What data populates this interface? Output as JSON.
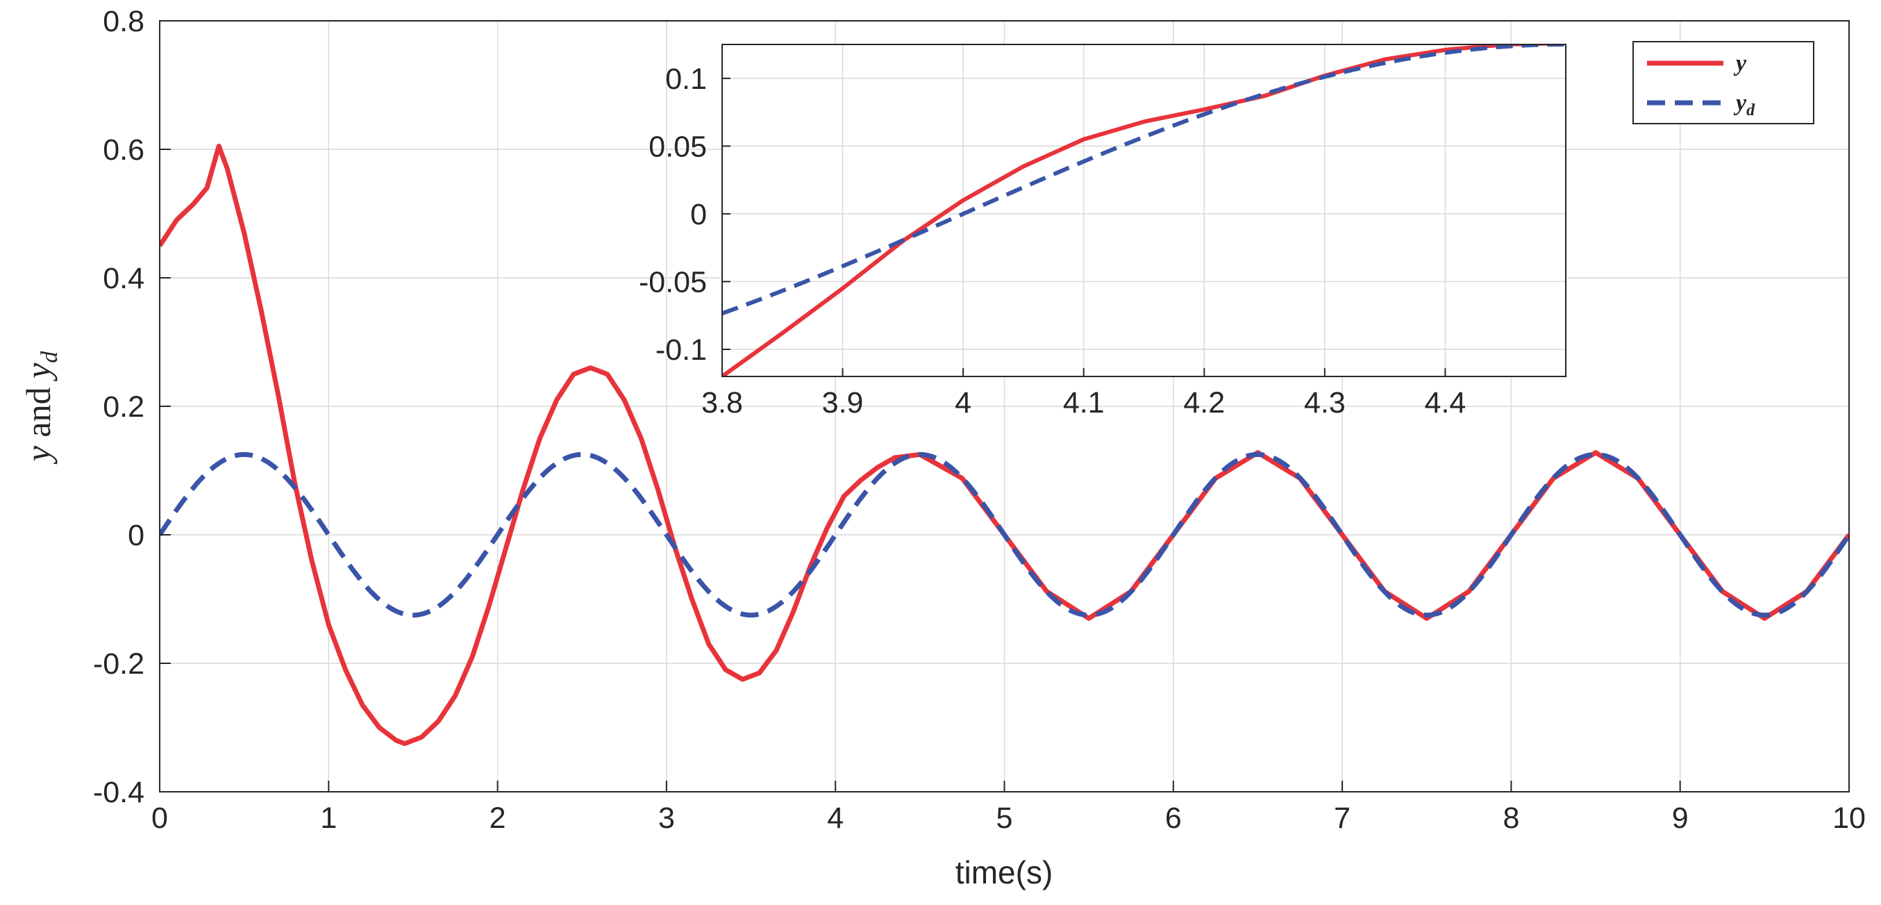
{
  "chart_data": [
    {
      "type": "line",
      "panel": "main",
      "xlabel": "time(s)",
      "ylabel": "y and y_d",
      "ylabel_parts": {
        "y": "y",
        "and": " and ",
        "yd": "y",
        "yd_sub": "d"
      },
      "xlim": [
        0,
        10
      ],
      "ylim": [
        -0.4,
        0.8
      ],
      "grid": true,
      "xticks": [
        0,
        1,
        2,
        3,
        4,
        5,
        6,
        7,
        8,
        9,
        10
      ],
      "xtick_labels": [
        "0",
        "1",
        "2",
        "3",
        "4",
        "5",
        "6",
        "7",
        "8",
        "9",
        "10"
      ],
      "yticks": [
        -0.4,
        -0.2,
        0,
        0.2,
        0.4,
        0.6,
        0.8
      ],
      "ytick_labels": [
        "-0.4",
        "-0.2",
        "0",
        "0.2",
        "0.4",
        "0.6",
        "0.8"
      ],
      "series": [
        {
          "name": "y",
          "color": "#e8333a",
          "style": "solid",
          "points": [
            [
              0,
              0.45
            ],
            [
              0.05,
              0.47
            ],
            [
              0.1,
              0.49
            ],
            [
              0.2,
              0.515
            ],
            [
              0.28,
              0.54
            ],
            [
              0.35,
              0.605
            ],
            [
              0.4,
              0.57
            ],
            [
              0.5,
              0.47
            ],
            [
              0.6,
              0.35
            ],
            [
              0.7,
              0.22
            ],
            [
              0.8,
              0.08
            ],
            [
              0.9,
              -0.04
            ],
            [
              1.0,
              -0.14
            ],
            [
              1.1,
              -0.21
            ],
            [
              1.2,
              -0.265
            ],
            [
              1.3,
              -0.3
            ],
            [
              1.4,
              -0.32
            ],
            [
              1.45,
              -0.325
            ],
            [
              1.55,
              -0.315
            ],
            [
              1.65,
              -0.29
            ],
            [
              1.75,
              -0.25
            ],
            [
              1.85,
              -0.19
            ],
            [
              1.95,
              -0.11
            ],
            [
              2.05,
              -0.02
            ],
            [
              2.15,
              0.07
            ],
            [
              2.25,
              0.15
            ],
            [
              2.35,
              0.21
            ],
            [
              2.45,
              0.25
            ],
            [
              2.55,
              0.26
            ],
            [
              2.65,
              0.25
            ],
            [
              2.75,
              0.21
            ],
            [
              2.85,
              0.15
            ],
            [
              2.95,
              0.07
            ],
            [
              3.05,
              -0.02
            ],
            [
              3.15,
              -0.1
            ],
            [
              3.25,
              -0.17
            ],
            [
              3.35,
              -0.21
            ],
            [
              3.45,
              -0.225
            ],
            [
              3.55,
              -0.215
            ],
            [
              3.65,
              -0.18
            ],
            [
              3.75,
              -0.12
            ],
            [
              3.85,
              -0.05
            ],
            [
              3.95,
              0.01
            ],
            [
              4.05,
              0.06
            ],
            [
              4.15,
              0.085
            ],
            [
              4.25,
              0.105
            ],
            [
              4.35,
              0.12
            ],
            [
              4.5,
              0.125
            ],
            [
              4.75,
              0.088
            ],
            [
              5.0,
              0.0
            ],
            [
              5.25,
              -0.088
            ],
            [
              5.5,
              -0.13
            ],
            [
              5.75,
              -0.088
            ],
            [
              6.0,
              0.0
            ],
            [
              6.25,
              0.088
            ],
            [
              6.5,
              0.128
            ],
            [
              6.75,
              0.088
            ],
            [
              7.0,
              0.0
            ],
            [
              7.25,
              -0.088
            ],
            [
              7.5,
              -0.13
            ],
            [
              7.75,
              -0.088
            ],
            [
              8.0,
              0.0
            ],
            [
              8.25,
              0.088
            ],
            [
              8.5,
              0.128
            ],
            [
              8.75,
              0.088
            ],
            [
              9.0,
              0.0
            ],
            [
              9.25,
              -0.088
            ],
            [
              9.5,
              -0.13
            ],
            [
              9.75,
              -0.088
            ],
            [
              10.0,
              0.0
            ]
          ]
        },
        {
          "name": "y_d",
          "color": "#3a54a8",
          "style": "dashed",
          "function": "0.125*sin(pi*t)"
        }
      ]
    },
    {
      "type": "line",
      "panel": "inset",
      "xlim": [
        3.8,
        4.5
      ],
      "ylim": [
        -0.12,
        0.125
      ],
      "grid": true,
      "xticks": [
        3.8,
        3.9,
        4.0,
        4.1,
        4.2,
        4.3,
        4.4
      ],
      "xtick_labels": [
        "3.8",
        "3.9",
        "4",
        "4.1",
        "4.2",
        "4.3",
        "4.4"
      ],
      "yticks": [
        -0.1,
        -0.05,
        0,
        0.05,
        0.1
      ],
      "ytick_labels": [
        "-0.1",
        "-0.05",
        "0",
        "0.05",
        "0.1"
      ],
      "legend": {
        "location": "top-right",
        "entries": [
          {
            "label": "y",
            "color": "#e8333a",
            "style": "solid",
            "subscript": ""
          },
          {
            "label": "y",
            "color": "#3a54a8",
            "style": "dashed",
            "subscript": "d"
          }
        ]
      },
      "series": [
        {
          "name": "y",
          "color": "#e8333a",
          "style": "solid",
          "points": [
            [
              3.8,
              -0.12
            ],
            [
              3.85,
              -0.088
            ],
            [
              3.9,
              -0.055
            ],
            [
              3.95,
              -0.02
            ],
            [
              4.0,
              0.01
            ],
            [
              4.05,
              0.035
            ],
            [
              4.1,
              0.055
            ],
            [
              4.15,
              0.068
            ],
            [
              4.2,
              0.077
            ],
            [
              4.25,
              0.087
            ],
            [
              4.3,
              0.102
            ],
            [
              4.35,
              0.114
            ],
            [
              4.4,
              0.121
            ],
            [
              4.45,
              0.125
            ],
            [
              4.5,
              0.126
            ]
          ]
        },
        {
          "name": "y_d",
          "color": "#3a54a8",
          "style": "dashed",
          "function": "0.125*sin(pi*t)"
        }
      ]
    }
  ]
}
